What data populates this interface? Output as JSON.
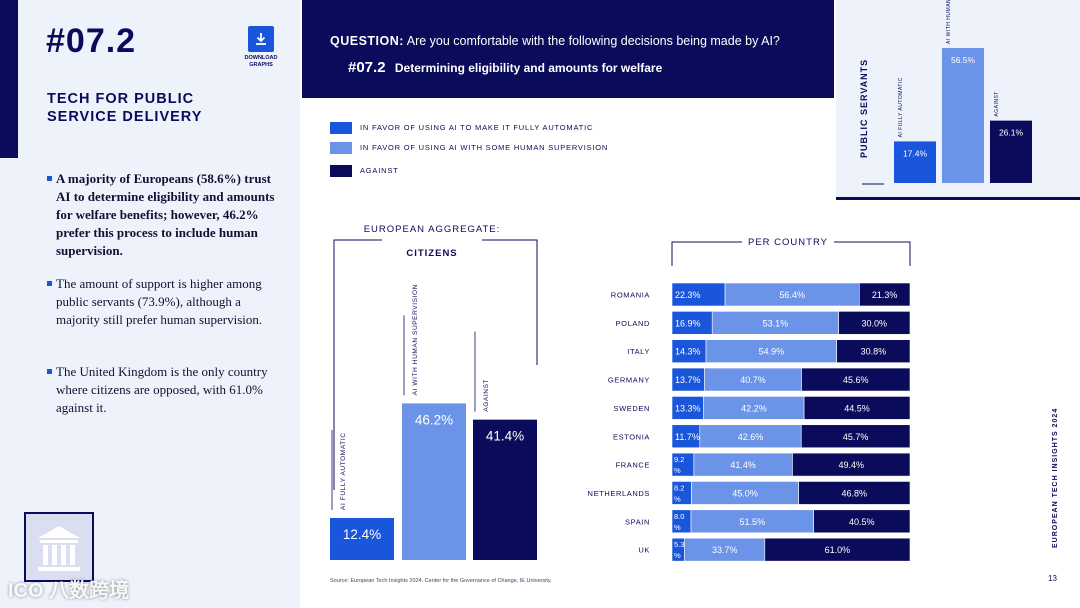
{
  "header": {
    "section_number": "#07.2",
    "download_label_1": "DOWNLOAD",
    "download_label_2": "GRAPHS",
    "section_title": "TECH FOR PUBLIC SERVICE DELIVERY"
  },
  "question": {
    "prefix": "QUESTION:",
    "text": "Are you comfortable with the following decisions being made by AI?",
    "sub_number": "#07.2",
    "sub_text": "Determining eligibility and amounts for welfare"
  },
  "bullets": [
    "A majority of Europeans (58.6%) trust AI to determine eligibility and amounts for welfare benefits; however, 46.2% prefer this process to include human supervision.",
    "The amount of support is higher among public servants (73.9%), although a majority still prefer human supervision.",
    "The United Kingdom is the only country where citizens are opposed, with 61.0% against it."
  ],
  "legend": [
    {
      "label": "IN FAVOR OF USING AI TO MAKE IT FULLY AUTOMATIC",
      "color": "#1a56db"
    },
    {
      "label": "IN FAVOR OF USING AI WITH SOME HUMAN SUPERVISION",
      "color": "#6b93e8"
    },
    {
      "label": "AGAINST",
      "color": "#0b0b5c"
    }
  ],
  "colors": {
    "full_auto": "#1a56db",
    "human": "#6b93e8",
    "against": "#0b0b5c"
  },
  "footer": {
    "source": "Source: European Tech Insights 2024. Center for the Governance of Change, IE University.",
    "side_label_prefix": "EUROPEAN TECH INSIGHTS",
    "side_label_year": "2024",
    "page_number": "13",
    "watermark": "ICO 八数跨境"
  },
  "chart_data": [
    {
      "type": "bar",
      "title": "PUBLIC SERVANTS",
      "categories": [
        "AI FULLY AUTOMATIC",
        "AI WITH HUMAN SUPERVISION",
        "AGAINST"
      ],
      "values": [
        17.4,
        56.5,
        26.1
      ],
      "value_labels": [
        "17.4%",
        "56.5%",
        "26.1%"
      ]
    },
    {
      "type": "bar",
      "title": "EUROPEAN AGGREGATE:",
      "subtitle": "CITIZENS",
      "categories": [
        "AI FULLY AUTOMATIC",
        "AI WITH HUMAN SUPERVISION",
        "AGAINST"
      ],
      "values": [
        12.4,
        46.2,
        41.4
      ],
      "value_labels": [
        "12.4%",
        "46.2%",
        "41.4%"
      ]
    },
    {
      "type": "bar",
      "orientation": "horizontal",
      "stacked": true,
      "title": "PER COUNTRY",
      "categories": [
        "ROMANIA",
        "POLAND",
        "ITALY",
        "GERMANY",
        "SWEDEN",
        "ESTONIA",
        "FRANCE",
        "NETHERLANDS",
        "SPAIN",
        "UK"
      ],
      "series": [
        {
          "values": [
            22.3,
            16.9,
            14.3,
            13.7,
            13.3,
            11.7,
            9.2,
            8.2,
            8.0,
            5.3
          ]
        },
        {
          "values": [
            56.4,
            53.1,
            54.9,
            40.7,
            42.2,
            42.6,
            41.4,
            45.0,
            51.5,
            33.7
          ]
        },
        {
          "values": [
            21.3,
            30.0,
            30.8,
            45.6,
            44.5,
            45.7,
            49.4,
            46.8,
            40.5,
            61.0
          ]
        }
      ],
      "labels": [
        [
          "22.3%",
          "56.4%",
          "21.3%"
        ],
        [
          "16.9%",
          "53.1%",
          "30.0%"
        ],
        [
          "14.3%",
          "54.9%",
          "30.8%"
        ],
        [
          "13.7%",
          "40.7%",
          "45.6%"
        ],
        [
          "13.3%",
          "42.2%",
          "44.5%"
        ],
        [
          "11.7%",
          "42.6%",
          "45.7%"
        ],
        [
          "9.2%",
          "41.4%",
          "49.4%"
        ],
        [
          "8.2%",
          "45.0%",
          "46.8%"
        ],
        [
          "8.0%",
          "51.5%",
          "40.5%"
        ],
        [
          "5.3%",
          "33.7%",
          "61.0%"
        ]
      ]
    }
  ]
}
